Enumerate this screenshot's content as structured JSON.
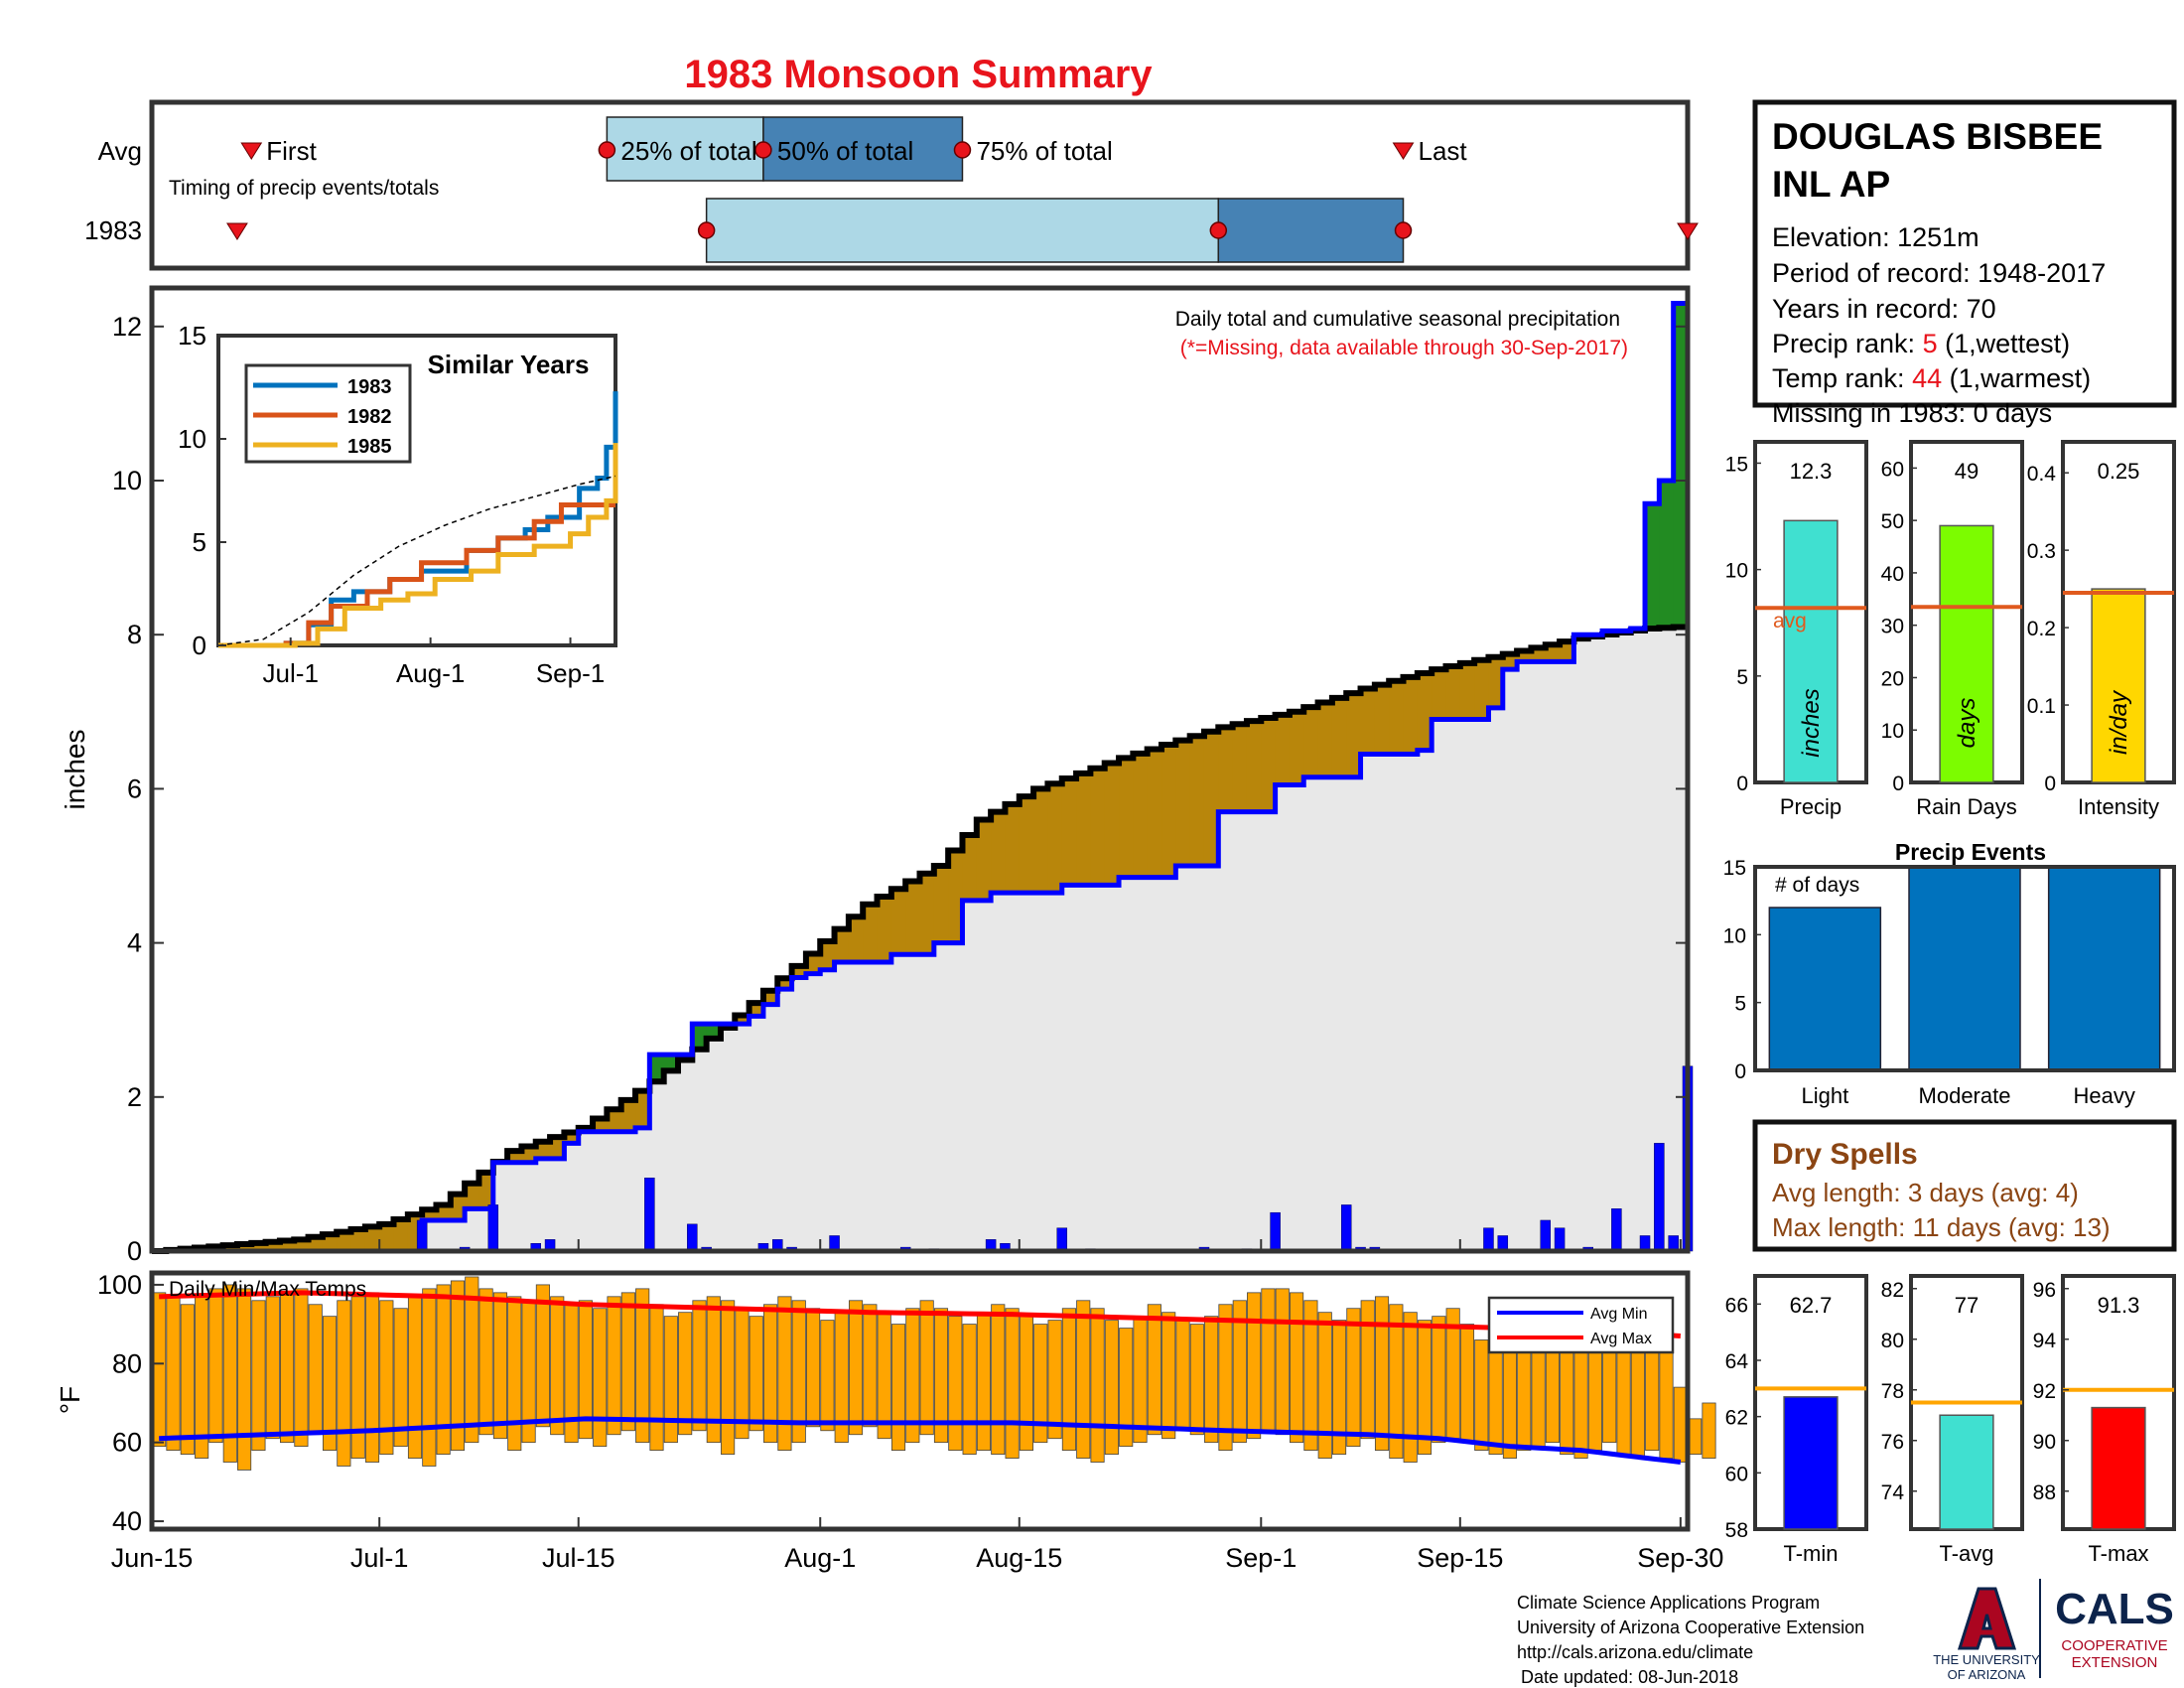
{
  "title": "1983 Monsoon Summary",
  "timeline": {
    "row_labels": [
      "Avg",
      "1983"
    ],
    "avg_markers": {
      "first": "First",
      "q25": "25% of total",
      "q50": "50% of total",
      "q75": "75% of total",
      "last": "Last"
    },
    "caption": "Timing of precip events/totals",
    "avg_days": {
      "first": 7,
      "q25": 32,
      "q50": 43,
      "q75": 57,
      "last": 88
    },
    "year_days": {
      "first": 6,
      "q25": 39,
      "q50": 75,
      "q75": 88,
      "last": 108
    }
  },
  "station": {
    "name_line1": "DOUGLAS BISBEE",
    "name_line2": "INL AP",
    "elevation": "Elevation: 1251m",
    "period": "Period of record: 1948-2017",
    "years": "Years in record: 70",
    "precip_rank_label": "Precip rank: ",
    "precip_rank_value": "5",
    "precip_rank_suffix": " (1,wettest)",
    "temp_rank_label": "Temp rank: ",
    "temp_rank_value": "44",
    "temp_rank_suffix": " (1,warmest)",
    "missing": "Missing in 1983: 0 days"
  },
  "main_chart": {
    "notes": [
      "Daily total and cumulative seasonal precipitation",
      "(*=Missing, data available through 30-Sep-2017)"
    ],
    "ylabel": "inches",
    "ylim": [
      0,
      12.5
    ],
    "yticks": [
      0,
      2,
      4,
      6,
      8,
      10,
      12
    ]
  },
  "x_axis": {
    "tick_labels": [
      "Jun-15",
      "Jul-1",
      "Jul-15",
      "Aug-1",
      "Aug-15",
      "Sep-1",
      "Sep-15",
      "Sep-30"
    ],
    "tick_days": [
      0,
      16,
      30,
      47,
      61,
      78,
      92,
      107
    ]
  },
  "inset": {
    "title": "Similar Years",
    "legend": [
      "1983",
      "1982",
      "1985"
    ],
    "colors": [
      "#0072bd",
      "#d95319",
      "#edb120"
    ],
    "xticks": [
      "Jul-1",
      "Aug-1",
      "Sep-1"
    ],
    "yticks": [
      "0",
      "5",
      "10",
      "15"
    ]
  },
  "temp_chart": {
    "title": "Daily Min/Max Temps",
    "ylabel": "°F",
    "yticks": [
      "40",
      "60",
      "80",
      "100"
    ],
    "legend": [
      "Avg Min",
      "Avg Max"
    ]
  },
  "stats": {
    "precip": {
      "value_text": "12.3",
      "label": "Precip",
      "unit": "inches",
      "avg_label": "avg",
      "yticks": [
        "0",
        "5",
        "10",
        "15"
      ]
    },
    "rain_days": {
      "value_text": "49",
      "label": "Rain Days",
      "unit": "days",
      "yticks": [
        "0",
        "10",
        "20",
        "30",
        "40",
        "50",
        "60"
      ]
    },
    "intensity": {
      "value_text": "0.25",
      "label": "Intensity",
      "unit": "in/day",
      "yticks": [
        "0",
        "0.1",
        "0.2",
        "0.3",
        "0.4"
      ]
    }
  },
  "events": {
    "title": "Precip Events",
    "note": "# of days",
    "categories": [
      "Light",
      "Moderate",
      "Heavy"
    ],
    "yticks": [
      "0",
      "5",
      "10",
      "15"
    ]
  },
  "dry_spells": {
    "title": "Dry Spells",
    "avg_length": "Avg length: 3 days (avg: 4)",
    "max_length": "Max length: 11 days (avg: 13)"
  },
  "temp_stats": {
    "tmin": {
      "label": "T-min",
      "value_text": "62.7",
      "yticks": [
        "58",
        "60",
        "62",
        "64",
        "66"
      ]
    },
    "tavg": {
      "label": "T-avg",
      "value_text": "77",
      "yticks": [
        "74",
        "76",
        "78",
        "80",
        "82"
      ]
    },
    "tmax": {
      "label": "T-max",
      "value_text": "91.3",
      "yticks": [
        "88",
        "90",
        "92",
        "94",
        "96"
      ]
    }
  },
  "footer": {
    "lines": [
      "Climate Science Applications Program",
      "University of Arizona Cooperative Extension",
      "http://cals.arizona.edu/climate",
      "Date updated: 08-Jun-2018"
    ],
    "ua_line1": "THE UNIVERSITY",
    "ua_line2": "OF ARIZONA",
    "cals": "CALS",
    "coop1": "COOPERATIVE",
    "coop2": "EXTENSION"
  },
  "colors": {
    "observed": "#0000ff",
    "average": "#000000",
    "deficit": "#b8860b",
    "surplus": "#228b22",
    "fill": "#e8e8e8",
    "title": "#e8141c",
    "bars": "#ffa500",
    "avg_line": "#e05a1e"
  },
  "chart_data": [
    {
      "type": "area",
      "title": "Daily total and cumulative seasonal precipitation",
      "ylabel": "inches",
      "ylim": [
        0,
        12.5
      ],
      "x_start": "Jun-15",
      "cum_avg_knots": [
        [
          0,
          0
        ],
        [
          10,
          0.15
        ],
        [
          16,
          0.35
        ],
        [
          20,
          0.6
        ],
        [
          25,
          1.3
        ],
        [
          30,
          1.6
        ],
        [
          35,
          2.2
        ],
        [
          40,
          2.9
        ],
        [
          45,
          3.7
        ],
        [
          50,
          4.5
        ],
        [
          55,
          5.0
        ],
        [
          58,
          5.6
        ],
        [
          62,
          6.0
        ],
        [
          68,
          6.4
        ],
        [
          75,
          6.8
        ],
        [
          80,
          7.0
        ],
        [
          85,
          7.3
        ],
        [
          90,
          7.55
        ],
        [
          95,
          7.75
        ],
        [
          100,
          7.95
        ],
        [
          105,
          8.08
        ],
        [
          107,
          8.1
        ]
      ],
      "cum_1983_steps": [
        [
          0,
          0
        ],
        [
          19,
          0.4
        ],
        [
          22,
          0.55
        ],
        [
          24,
          1.15
        ],
        [
          27,
          1.2
        ],
        [
          29,
          1.4
        ],
        [
          30,
          1.55
        ],
        [
          34,
          1.6
        ],
        [
          35,
          2.55
        ],
        [
          38,
          2.95
        ],
        [
          42,
          3.05
        ],
        [
          43,
          3.2
        ],
        [
          44,
          3.4
        ],
        [
          45,
          3.55
        ],
        [
          46,
          3.6
        ],
        [
          47,
          3.65
        ],
        [
          48,
          3.75
        ],
        [
          52,
          3.85
        ],
        [
          55,
          4.0
        ],
        [
          57,
          4.55
        ],
        [
          59,
          4.65
        ],
        [
          64,
          4.75
        ],
        [
          68,
          4.85
        ],
        [
          72,
          5.0
        ],
        [
          75,
          5.7
        ],
        [
          79,
          6.05
        ],
        [
          81,
          6.15
        ],
        [
          85,
          6.45
        ],
        [
          89,
          6.5
        ],
        [
          90,
          6.9
        ],
        [
          94,
          7.05
        ],
        [
          95,
          7.55
        ],
        [
          96,
          7.65
        ],
        [
          100,
          8.0
        ],
        [
          102,
          8.05
        ],
        [
          104,
          8.08
        ],
        [
          105,
          9.7
        ],
        [
          106,
          10.0
        ],
        [
          107,
          12.3
        ]
      ],
      "daily_1983": [
        [
          19,
          0.4
        ],
        [
          22,
          0.05
        ],
        [
          24,
          0.6
        ],
        [
          27,
          0.1
        ],
        [
          28,
          0.15
        ],
        [
          35,
          0.95
        ],
        [
          38,
          0.35
        ],
        [
          39,
          0.05
        ],
        [
          43,
          0.1
        ],
        [
          44,
          0.15
        ],
        [
          45,
          0.05
        ],
        [
          48,
          0.2
        ],
        [
          53,
          0.05
        ],
        [
          55,
          0.03
        ],
        [
          59,
          0.15
        ],
        [
          60,
          0.1
        ],
        [
          64,
          0.3
        ],
        [
          66,
          0.03
        ],
        [
          74,
          0.05
        ],
        [
          77,
          0.03
        ],
        [
          79,
          0.5
        ],
        [
          84,
          0.6
        ],
        [
          85,
          0.05
        ],
        [
          86,
          0.05
        ],
        [
          94,
          0.3
        ],
        [
          95,
          0.2
        ],
        [
          98,
          0.4
        ],
        [
          99,
          0.3
        ],
        [
          101,
          0.05
        ],
        [
          103,
          0.55
        ],
        [
          105,
          0.2
        ],
        [
          106,
          1.4
        ],
        [
          107,
          0.2
        ],
        [
          108,
          2.4
        ]
      ]
    },
    {
      "type": "line",
      "title": "Similar Years",
      "series": [
        {
          "name": "1983",
          "points": [
            [
              0,
              0
            ],
            [
              15,
              0.1
            ],
            [
              20,
              1.0
            ],
            [
              25,
              2.2
            ],
            [
              30,
              2.6
            ],
            [
              38,
              3.2
            ],
            [
              45,
              3.6
            ],
            [
              55,
              4.6
            ],
            [
              62,
              5.2
            ],
            [
              68,
              5.6
            ],
            [
              73,
              6.2
            ],
            [
              80,
              7.6
            ],
            [
              84,
              8.1
            ],
            [
              86,
              9.6
            ],
            [
              88,
              12.3
            ]
          ]
        },
        {
          "name": "1982",
          "points": [
            [
              0,
              0
            ],
            [
              15,
              0.1
            ],
            [
              20,
              1.1
            ],
            [
              25,
              1.9
            ],
            [
              33,
              2.6
            ],
            [
              38,
              3.2
            ],
            [
              45,
              4.0
            ],
            [
              55,
              4.6
            ],
            [
              62,
              5.2
            ],
            [
              70,
              6.0
            ],
            [
              76,
              6.8
            ],
            [
              78,
              6.8
            ],
            [
              88,
              6.8
            ]
          ]
        },
        {
          "name": "1985",
          "points": [
            [
              0,
              0
            ],
            [
              17,
              0.1
            ],
            [
              22,
              0.8
            ],
            [
              28,
              1.8
            ],
            [
              36,
              2.2
            ],
            [
              42,
              2.5
            ],
            [
              48,
              3.2
            ],
            [
              56,
              3.6
            ],
            [
              62,
              4.4
            ],
            [
              70,
              4.8
            ],
            [
              78,
              5.4
            ],
            [
              82,
              6.2
            ],
            [
              86,
              7.0
            ],
            [
              88,
              9.8
            ]
          ]
        },
        {
          "points": [
            [
              0,
              0
            ],
            [
              10,
              0.3
            ],
            [
              20,
              1.6
            ],
            [
              30,
              3.4
            ],
            [
              40,
              4.8
            ],
            [
              50,
              5.8
            ],
            [
              60,
              6.6
            ],
            [
              70,
              7.2
            ],
            [
              80,
              7.8
            ],
            [
              88,
              8.2
            ]
          ]
        }
      ],
      "xticks": [
        "Jul-1",
        "Aug-1",
        "Sep-1"
      ],
      "ylim": [
        0,
        15
      ]
    },
    {
      "type": "bar",
      "title": "Daily Min/Max Temps",
      "ylabel": "°F",
      "ylim": [
        38,
        103
      ],
      "tmax": [
        98,
        97,
        95,
        97,
        99,
        100,
        99,
        96,
        97,
        98,
        99,
        95,
        92,
        96,
        97,
        98,
        96,
        94,
        97,
        99,
        100,
        101,
        102,
        99,
        98,
        97,
        96,
        100,
        97,
        95,
        96,
        94,
        97,
        98,
        99,
        95,
        92,
        93,
        96,
        97,
        96,
        94,
        92,
        95,
        97,
        96,
        94,
        91,
        93,
        96,
        95,
        93,
        90,
        94,
        96,
        94,
        92,
        90,
        93,
        95,
        94,
        92,
        90,
        91,
        94,
        96,
        94,
        91,
        89,
        92,
        95,
        93,
        91,
        90,
        92,
        95,
        96,
        98,
        99,
        99,
        98,
        96,
        93,
        91,
        94,
        96,
        97,
        95,
        93,
        91,
        92,
        94,
        90,
        86,
        88,
        92,
        94,
        92,
        89,
        87,
        90,
        92,
        88,
        85,
        87,
        89,
        84,
        74,
        66,
        70
      ],
      "tmin": [
        59,
        58,
        57,
        56,
        60,
        55,
        53,
        58,
        61,
        60,
        59,
        62,
        58,
        54,
        56,
        55,
        57,
        59,
        56,
        54,
        57,
        58,
        60,
        62,
        61,
        58,
        60,
        64,
        62,
        60,
        61,
        59,
        62,
        63,
        60,
        58,
        60,
        62,
        63,
        60,
        57,
        61,
        63,
        60,
        58,
        60,
        64,
        63,
        60,
        62,
        64,
        61,
        58,
        60,
        62,
        60,
        58,
        57,
        58,
        57,
        56,
        58,
        60,
        61,
        58,
        56,
        55,
        57,
        59,
        60,
        62,
        61,
        63,
        62,
        60,
        58,
        60,
        61,
        63,
        62,
        60,
        58,
        56,
        57,
        59,
        61,
        58,
        56,
        55,
        57,
        60,
        61,
        60,
        58,
        57,
        56,
        58,
        59,
        60,
        57,
        56,
        58,
        60,
        57,
        56,
        58,
        56,
        55,
        57,
        56
      ],
      "series": [
        {
          "name": "Avg Min",
          "points": [
            [
              0,
              61
            ],
            [
              15,
              63
            ],
            [
              30,
              66
            ],
            [
              45,
              65
            ],
            [
              60,
              65
            ],
            [
              75,
              63
            ],
            [
              85,
              62
            ],
            [
              90,
              61
            ],
            [
              95,
              59
            ],
            [
              100,
              58
            ],
            [
              107,
              55
            ]
          ]
        },
        {
          "name": "Avg Max",
          "points": [
            [
              0,
              97
            ],
            [
              10,
              98
            ],
            [
              20,
              97
            ],
            [
              30,
              95
            ],
            [
              40,
              94
            ],
            [
              50,
              93
            ],
            [
              60,
              92.5
            ],
            [
              70,
              91.5
            ],
            [
              80,
              90.5
            ],
            [
              90,
              89.5
            ],
            [
              100,
              88.5
            ],
            [
              107,
              87
            ]
          ]
        }
      ]
    },
    {
      "type": "bar",
      "categories": [
        "Precip"
      ],
      "values": [
        12.3
      ],
      "avg": 8.2,
      "ylim": [
        0,
        16
      ]
    },
    {
      "type": "bar",
      "categories": [
        "Rain Days"
      ],
      "values": [
        49
      ],
      "avg": 33.5,
      "ylim": [
        0,
        65
      ]
    },
    {
      "type": "bar",
      "categories": [
        "Intensity"
      ],
      "values": [
        0.25
      ],
      "avg": 0.245,
      "ylim": [
        0,
        0.44
      ]
    },
    {
      "type": "bar",
      "title": "Precip Events",
      "categories": [
        "Light",
        "Moderate",
        "Heavy"
      ],
      "values": [
        12,
        15,
        15
      ],
      "ylim": [
        0,
        15
      ]
    },
    {
      "type": "bar",
      "categories": [
        "T-min"
      ],
      "values": [
        62.7
      ],
      "avg": 63,
      "ylim": [
        58,
        67
      ]
    },
    {
      "type": "bar",
      "categories": [
        "T-avg"
      ],
      "values": [
        77
      ],
      "avg": 77.5,
      "ylim": [
        72.5,
        82.5
      ]
    },
    {
      "type": "bar",
      "categories": [
        "T-max"
      ],
      "values": [
        91.3
      ],
      "avg": 92,
      "ylim": [
        86.5,
        96.5
      ]
    }
  ]
}
